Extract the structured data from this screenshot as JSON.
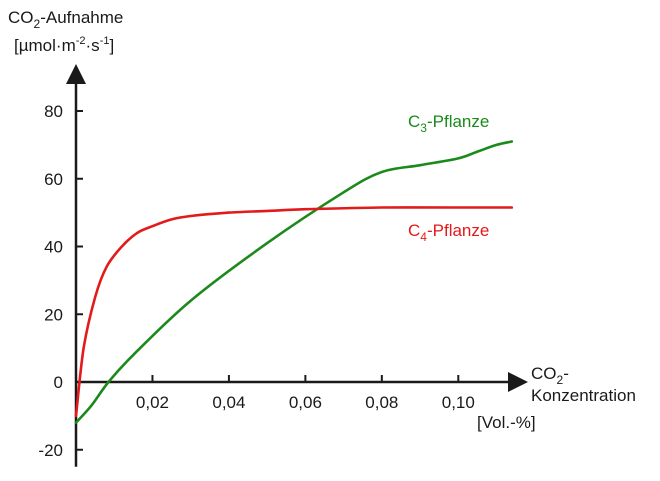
{
  "chart_data": {
    "type": "line",
    "ylabel": {
      "line1": {
        "pre": "CO",
        "sub": "2",
        "post": "-Aufnahme"
      },
      "line2": {
        "p1": "[µmol·m",
        "s1": "-2",
        "p2": "·s",
        "s2": "-1",
        "p3": "]"
      }
    },
    "xlabel": {
      "line1": {
        "pre": "CO",
        "sub": "2",
        "post": "-"
      },
      "line2": "Konzentration",
      "unit": "[Vol.-%]"
    },
    "xlim": [
      0,
      0.113
    ],
    "ylim": [
      -25,
      90
    ],
    "xticks": [
      {
        "value": 0.02,
        "label": "0,02"
      },
      {
        "value": 0.04,
        "label": "0,04"
      },
      {
        "value": 0.06,
        "label": "0,06"
      },
      {
        "value": 0.08,
        "label": "0,08"
      },
      {
        "value": 0.1,
        "label": "0,10"
      }
    ],
    "yticks": [
      {
        "value": -20,
        "label": "-20"
      },
      {
        "value": 0,
        "label": "0"
      },
      {
        "value": 20,
        "label": "20"
      },
      {
        "value": 40,
        "label": "40"
      },
      {
        "value": 60,
        "label": "60"
      },
      {
        "value": 80,
        "label": "80"
      }
    ],
    "grid": false,
    "series": [
      {
        "name": {
          "pre": "C",
          "sub": "3",
          "post": "-Pflanze"
        },
        "color": "#1b8a1b",
        "x": [
          0,
          0.004,
          0.0085,
          0.015,
          0.03,
          0.05,
          0.07,
          0.08,
          0.09,
          0.1,
          0.105,
          0.11,
          0.114
        ],
        "y": [
          -12,
          -7,
          0,
          8,
          24,
          41,
          56,
          62,
          64,
          66,
          68,
          70,
          71
        ]
      },
      {
        "name": {
          "pre": "C",
          "sub": "4",
          "post": "-Pflanze"
        },
        "color": "#e31a1a",
        "x": [
          0,
          0.002,
          0.005,
          0.008,
          0.012,
          0.016,
          0.02,
          0.025,
          0.03,
          0.04,
          0.05,
          0.06,
          0.08,
          0.1,
          0.114
        ],
        "y": [
          -10,
          10,
          25,
          34,
          40,
          44,
          46,
          48,
          49,
          50,
          50.5,
          51,
          51.5,
          51.5,
          51.5
        ]
      }
    ]
  }
}
